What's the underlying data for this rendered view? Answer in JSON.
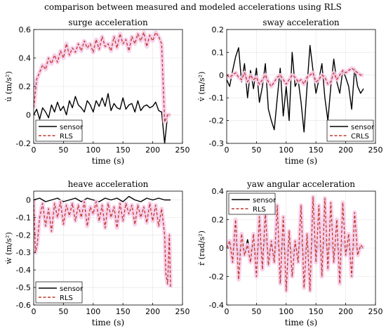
{
  "figure_title": "comparison between measured and modeled accelerations using RLS",
  "colors": {
    "sensor": "#000000",
    "model": "#c0392b",
    "band": "#f6cdea"
  },
  "chart_data": [
    {
      "type": "line",
      "title": "surge acceleration",
      "xlabel": "time (s)",
      "ylabel": "u̇ (m/s²)",
      "xlim": [
        0,
        250
      ],
      "ylim": [
        -0.2,
        0.6
      ],
      "xticks": [
        0,
        50,
        100,
        150,
        200,
        250
      ],
      "yticks": [
        -0.2,
        0,
        0.2,
        0.4,
        0.6
      ],
      "xtick_labels": [
        "0",
        "50",
        "100",
        "150",
        "200",
        "250"
      ],
      "ytick_labels": [
        "-0.2",
        "0",
        "0.2",
        "0.4",
        "0.6"
      ],
      "legend_position": "bottom-left",
      "grid": true,
      "series": [
        {
          "name": "sensor",
          "style": "solid",
          "x": [
            0,
            5,
            10,
            15,
            20,
            25,
            30,
            35,
            40,
            45,
            50,
            55,
            60,
            65,
            70,
            75,
            80,
            85,
            90,
            95,
            100,
            105,
            110,
            115,
            120,
            125,
            130,
            135,
            140,
            145,
            150,
            155,
            160,
            165,
            170,
            175,
            180,
            185,
            190,
            195,
            200,
            205,
            210,
            215,
            220,
            225,
            230
          ],
          "y": [
            0,
            0.04,
            -0.03,
            0.05,
            0.02,
            -0.02,
            0.07,
            0.02,
            0.09,
            0.03,
            0.06,
            0,
            0.1,
            0.05,
            0.13,
            0.07,
            0.05,
            0.02,
            0.1,
            0.07,
            0.02,
            0.1,
            0.06,
            0.12,
            0.06,
            0.15,
            0.03,
            0.08,
            0.05,
            0.04,
            0.12,
            0.04,
            0.07,
            0.08,
            0.02,
            0.1,
            0.03,
            0.06,
            0.07,
            0.05,
            0.06,
            0.09,
            0.03,
            0.02,
            -0.2,
            0,
            0
          ]
        },
        {
          "name": "RLS",
          "style": "dashed",
          "x": [
            0,
            5,
            10,
            15,
            20,
            25,
            30,
            35,
            40,
            45,
            50,
            55,
            60,
            65,
            70,
            75,
            80,
            85,
            90,
            95,
            100,
            105,
            110,
            115,
            120,
            125,
            130,
            135,
            140,
            145,
            150,
            155,
            160,
            165,
            170,
            175,
            180,
            185,
            190,
            195,
            200,
            205,
            210,
            215,
            220,
            225,
            230
          ],
          "y": [
            0.05,
            0.25,
            0.3,
            0.35,
            0.32,
            0.4,
            0.36,
            0.42,
            0.37,
            0.45,
            0.4,
            0.5,
            0.42,
            0.47,
            0.44,
            0.5,
            0.45,
            0.52,
            0.47,
            0.5,
            0.44,
            0.53,
            0.46,
            0.55,
            0.48,
            0.5,
            0.45,
            0.55,
            0.47,
            0.57,
            0.5,
            0.53,
            0.45,
            0.55,
            0.5,
            0.57,
            0.52,
            0.58,
            0.48,
            0.56,
            0.52,
            0.58,
            0.55,
            0.5,
            -0.05,
            0,
            0
          ]
        }
      ]
    },
    {
      "type": "line",
      "title": "sway acceleration",
      "xlabel": "time (s)",
      "ylabel": "v̇ (m/s²)",
      "xlim": [
        0,
        250
      ],
      "ylim": [
        -0.3,
        0.2
      ],
      "xticks": [
        0,
        50,
        100,
        150,
        200,
        250
      ],
      "yticks": [
        -0.3,
        -0.2,
        -0.1,
        0,
        0.1,
        0.2
      ],
      "xtick_labels": [
        "0",
        "50",
        "100",
        "150",
        "200",
        "250"
      ],
      "ytick_labels": [
        "-0.3",
        "-0.2",
        "-0.1",
        "0",
        "0.1",
        "0.2"
      ],
      "legend_position": "bottom-right",
      "grid": true,
      "series": [
        {
          "name": "sensor",
          "style": "solid",
          "x": [
            0,
            5,
            10,
            15,
            20,
            25,
            30,
            35,
            40,
            45,
            50,
            55,
            60,
            65,
            70,
            75,
            80,
            85,
            90,
            95,
            100,
            105,
            110,
            115,
            120,
            125,
            130,
            135,
            140,
            145,
            150,
            155,
            160,
            165,
            170,
            175,
            180,
            185,
            190,
            195,
            200,
            205,
            210,
            215,
            220,
            225,
            230
          ],
          "y": [
            -0.02,
            -0.05,
            0.02,
            0.08,
            0.12,
            -0.03,
            0.05,
            -0.1,
            0.02,
            -0.06,
            0.03,
            -0.12,
            -0.05,
            0.05,
            -0.15,
            -0.2,
            -0.24,
            -0.1,
            0.03,
            -0.18,
            -0.05,
            -0.2,
            0.1,
            -0.05,
            -0.02,
            -0.12,
            -0.25,
            -0.05,
            0.13,
            0.02,
            -0.08,
            -0.02,
            0.05,
            -0.1,
            -0.2,
            -0.05,
            0.07,
            -0.03,
            -0.08,
            0.02,
            -0.01,
            -0.05,
            -0.15,
            0.03,
            -0.05,
            -0.08,
            -0.06
          ]
        },
        {
          "name": "CRLS",
          "style": "dashed",
          "x": [
            0,
            5,
            10,
            15,
            20,
            25,
            30,
            35,
            40,
            45,
            50,
            55,
            60,
            65,
            70,
            75,
            80,
            85,
            90,
            95,
            100,
            105,
            110,
            115,
            120,
            125,
            130,
            135,
            140,
            145,
            150,
            155,
            160,
            165,
            170,
            175,
            180,
            185,
            190,
            195,
            200,
            205,
            210,
            215,
            220,
            225,
            230
          ],
          "y": [
            0,
            -0.01,
            0,
            0.01,
            -0.01,
            -0.02,
            0.01,
            -0.03,
            0,
            -0.02,
            -0.01,
            -0.04,
            -0.02,
            0,
            -0.03,
            -0.05,
            -0.03,
            -0.01,
            0,
            -0.02,
            -0.04,
            -0.02,
            0,
            -0.01,
            -0.03,
            -0.02,
            -0.04,
            -0.01,
            0,
            0.01,
            -0.03,
            -0.02,
            0,
            -0.01,
            -0.04,
            -0.03,
            0.01,
            -0.02,
            0,
            0.02,
            0.01,
            0.02,
            0.03,
            0.02,
            0.01,
            0,
            0
          ]
        }
      ]
    },
    {
      "type": "line",
      "title": "heave acceleration",
      "xlabel": "time (s)",
      "ylabel": "ẇ (m/s²)",
      "xlim": [
        0,
        250
      ],
      "ylim": [
        -0.6,
        0.05
      ],
      "xticks": [
        0,
        50,
        100,
        150,
        200,
        250
      ],
      "yticks": [
        -0.6,
        -0.5,
        -0.4,
        -0.3,
        -0.2,
        -0.1,
        0
      ],
      "xtick_labels": [
        "0",
        "50",
        "100",
        "150",
        "200",
        "250"
      ],
      "ytick_labels": [
        "-0.6",
        "-0.5",
        "-0.4",
        "-0.3",
        "-0.2",
        "-0.1",
        "0"
      ],
      "legend_position": "bottom-left",
      "grid": true,
      "series": [
        {
          "name": "sensor",
          "style": "solid",
          "x": [
            0,
            10,
            20,
            30,
            40,
            50,
            60,
            70,
            80,
            90,
            100,
            110,
            120,
            130,
            140,
            150,
            160,
            170,
            180,
            190,
            200,
            210,
            220,
            230
          ],
          "y": [
            0,
            0.01,
            -0.01,
            0,
            0.01,
            -0.01,
            0,
            0.01,
            -0.01,
            0.01,
            0,
            -0.01,
            0.01,
            0,
            0.01,
            -0.01,
            0.02,
            0,
            -0.01,
            0.01,
            0,
            0.01,
            0,
            0
          ]
        },
        {
          "name": "RLS",
          "style": "dashed",
          "x": [
            0,
            3,
            6,
            10,
            15,
            20,
            25,
            30,
            35,
            40,
            45,
            50,
            55,
            60,
            65,
            70,
            75,
            80,
            85,
            90,
            95,
            100,
            105,
            110,
            115,
            120,
            125,
            130,
            135,
            140,
            145,
            150,
            155,
            160,
            165,
            170,
            175,
            180,
            185,
            190,
            195,
            200,
            205,
            210,
            215,
            220,
            222,
            225,
            228,
            230
          ],
          "y": [
            0,
            -0.3,
            -0.25,
            -0.1,
            -0.02,
            -0.15,
            -0.05,
            -0.18,
            -0.02,
            -0.1,
            -0.01,
            -0.14,
            -0.03,
            -0.09,
            -0.02,
            -0.12,
            -0.03,
            -0.1,
            -0.01,
            -0.15,
            -0.04,
            -0.08,
            -0.01,
            -0.12,
            -0.03,
            -0.16,
            -0.02,
            -0.1,
            -0.04,
            -0.16,
            -0.02,
            -0.12,
            -0.02,
            -0.08,
            -0.03,
            -0.14,
            -0.03,
            -0.1,
            -0.04,
            -0.13,
            -0.02,
            -0.12,
            -0.03,
            -0.15,
            -0.05,
            -0.2,
            -0.42,
            -0.48,
            -0.2,
            -0.5
          ]
        }
      ]
    },
    {
      "type": "line",
      "title": "yaw angular acceleration",
      "xlabel": "time (s)",
      "ylabel": "ṙ (rad/s²)",
      "xlim": [
        0,
        250
      ],
      "ylim": [
        -0.4,
        0.4
      ],
      "xticks": [
        0,
        50,
        100,
        150,
        200,
        250
      ],
      "yticks": [
        -0.4,
        -0.2,
        0,
        0.2,
        0.4
      ],
      "xtick_labels": [
        "0",
        "50",
        "100",
        "150",
        "200",
        "250"
      ],
      "ytick_labels": [
        "-0.4",
        "-0.2",
        "0",
        "0.2",
        "0.4"
      ],
      "legend_position": "top-left",
      "grid": true,
      "series": [
        {
          "name": "sensor",
          "style": "solid",
          "x": [
            0,
            5,
            10,
            15,
            20,
            25,
            30,
            35,
            40,
            45,
            50,
            55,
            60,
            65,
            70,
            75,
            80,
            85,
            90,
            95,
            100,
            105,
            110,
            115,
            120,
            125,
            130,
            135,
            140,
            145,
            150,
            155,
            160,
            165,
            170,
            175,
            180,
            185,
            190,
            195,
            200,
            205,
            210,
            215,
            220,
            225,
            230
          ],
          "y": [
            0,
            0.01,
            -0.02,
            0.05,
            -0.05,
            0.03,
            -0.04,
            0.06,
            -0.03,
            0.02,
            -0.06,
            0.04,
            -0.05,
            0.07,
            -0.04,
            0.03,
            -0.06,
            0.05,
            -0.03,
            0.04,
            -0.05,
            0.06,
            -0.04,
            0.02,
            -0.03,
            0.05,
            -0.06,
            0.04,
            -0.05,
            0.07,
            -0.04,
            0.03,
            -0.05,
            0.06,
            -0.03,
            0.04,
            -0.05,
            0.03,
            -0.04,
            0.05,
            -0.03,
            0.02,
            -0.04,
            0.03,
            -0.02,
            0,
            0
          ]
        },
        {
          "name": "RLS",
          "style": "dashed",
          "x": [
            0,
            5,
            10,
            15,
            20,
            25,
            30,
            35,
            40,
            45,
            50,
            55,
            60,
            65,
            70,
            75,
            80,
            85,
            90,
            95,
            100,
            105,
            110,
            115,
            120,
            125,
            130,
            135,
            140,
            145,
            150,
            155,
            160,
            165,
            170,
            175,
            180,
            185,
            190,
            195,
            200,
            205,
            210,
            215,
            220,
            225,
            230
          ],
          "y": [
            0,
            0.05,
            -0.1,
            0.2,
            -0.22,
            0.1,
            -0.05,
            0.02,
            -0.1,
            0.1,
            -0.2,
            0.22,
            -0.15,
            0.25,
            -0.12,
            0.05,
            -0.1,
            0.3,
            -0.25,
            0.22,
            -0.3,
            0.12,
            -0.2,
            0.05,
            -0.1,
            0.3,
            -0.28,
            0.1,
            -0.3,
            0.36,
            -0.1,
            0.3,
            -0.2,
            0.35,
            -0.15,
            0.32,
            -0.1,
            0.2,
            -0.25,
            0.32,
            -0.05,
            0.1,
            -0.2,
            0.25,
            -0.05,
            0.02,
            0
          ]
        }
      ]
    }
  ]
}
